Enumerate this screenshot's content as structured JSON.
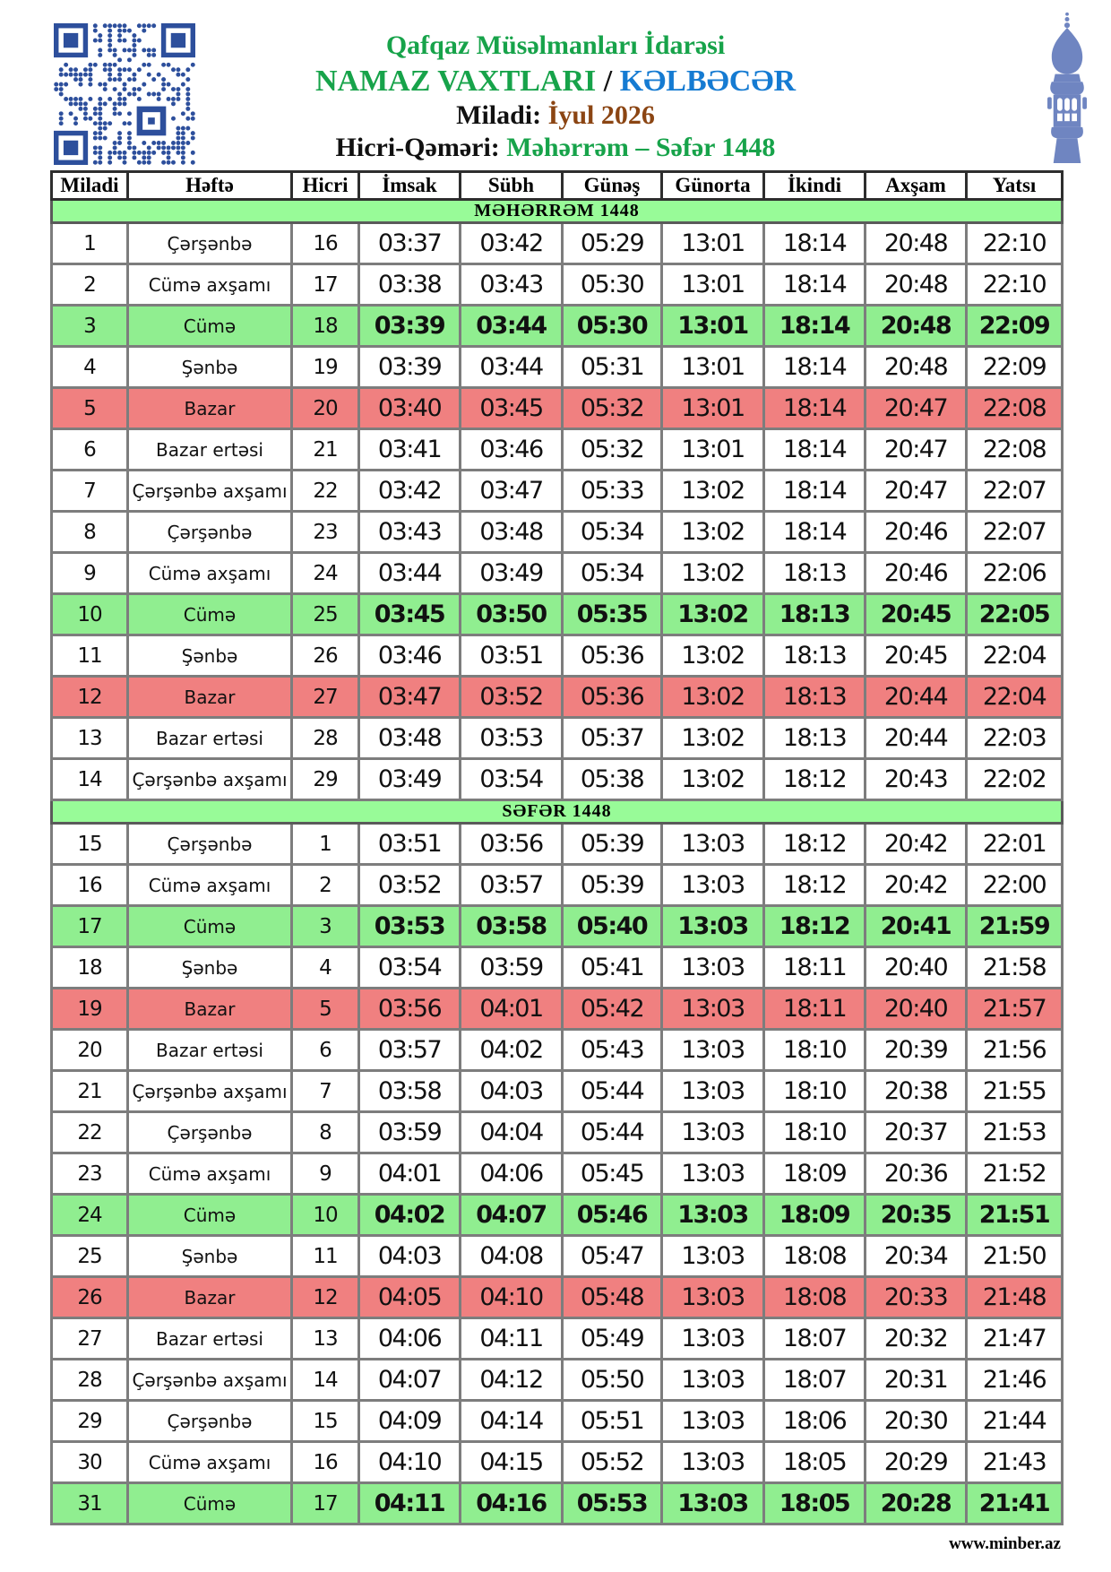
{
  "header": {
    "line1": "Qafqaz Müsəlmanları İdarəsi",
    "line2_left": "NAMAZ VAXTLARI",
    "line2_sep": " / ",
    "line2_right": "KƏLBƏCƏR",
    "line3_label": "Miladi: ",
    "line3_value": "İyul 2026",
    "line4_label": "Hicri-Qəməri: ",
    "line4_value": "Məhərrəm – Səfər 1448"
  },
  "colors": {
    "title_green": "#17a34a",
    "city_blue": "#157bd2",
    "month_brown": "#8b4513",
    "friday_row_bg": "#90ee90",
    "sunday_row_bg": "#f08080",
    "section_bg": "#98fb98",
    "qr_blue": "#2d4f9c",
    "minaret_blue": "#6f85c1"
  },
  "icons": {
    "qr": "qr-code-icon",
    "minaret": "minaret-icon"
  },
  "table": {
    "columns": [
      "Miladi",
      "Həftə",
      "Hicri",
      "İmsak",
      "Sübh",
      "Günəş",
      "Günorta",
      "İkindi",
      "Axşam",
      "Yatsı"
    ],
    "sections": [
      {
        "title": "MƏHƏRRƏM 1448",
        "rows": [
          {
            "miladi": "1",
            "hefte": "Çərşənbə",
            "hicri": "16",
            "times": [
              "03:37",
              "03:42",
              "05:29",
              "13:01",
              "18:14",
              "20:48",
              "22:10"
            ],
            "highlight": "none"
          },
          {
            "miladi": "2",
            "hefte": "Cümə axşamı",
            "hicri": "17",
            "times": [
              "03:38",
              "03:43",
              "05:30",
              "13:01",
              "18:14",
              "20:48",
              "22:10"
            ],
            "highlight": "none"
          },
          {
            "miladi": "3",
            "hefte": "Cümə",
            "hicri": "18",
            "times": [
              "03:39",
              "03:44",
              "05:30",
              "13:01",
              "18:14",
              "20:48",
              "22:09"
            ],
            "highlight": "friday"
          },
          {
            "miladi": "4",
            "hefte": "Şənbə",
            "hicri": "19",
            "times": [
              "03:39",
              "03:44",
              "05:31",
              "13:01",
              "18:14",
              "20:48",
              "22:09"
            ],
            "highlight": "none"
          },
          {
            "miladi": "5",
            "hefte": "Bazar",
            "hicri": "20",
            "times": [
              "03:40",
              "03:45",
              "05:32",
              "13:01",
              "18:14",
              "20:47",
              "22:08"
            ],
            "highlight": "sunday"
          },
          {
            "miladi": "6",
            "hefte": "Bazar ertəsi",
            "hicri": "21",
            "times": [
              "03:41",
              "03:46",
              "05:32",
              "13:01",
              "18:14",
              "20:47",
              "22:08"
            ],
            "highlight": "none"
          },
          {
            "miladi": "7",
            "hefte": "Çərşənbə axşamı",
            "hicri": "22",
            "times": [
              "03:42",
              "03:47",
              "05:33",
              "13:02",
              "18:14",
              "20:47",
              "22:07"
            ],
            "highlight": "none"
          },
          {
            "miladi": "8",
            "hefte": "Çərşənbə",
            "hicri": "23",
            "times": [
              "03:43",
              "03:48",
              "05:34",
              "13:02",
              "18:14",
              "20:46",
              "22:07"
            ],
            "highlight": "none"
          },
          {
            "miladi": "9",
            "hefte": "Cümə axşamı",
            "hicri": "24",
            "times": [
              "03:44",
              "03:49",
              "05:34",
              "13:02",
              "18:13",
              "20:46",
              "22:06"
            ],
            "highlight": "none"
          },
          {
            "miladi": "10",
            "hefte": "Cümə",
            "hicri": "25",
            "times": [
              "03:45",
              "03:50",
              "05:35",
              "13:02",
              "18:13",
              "20:45",
              "22:05"
            ],
            "highlight": "friday"
          },
          {
            "miladi": "11",
            "hefte": "Şənbə",
            "hicri": "26",
            "times": [
              "03:46",
              "03:51",
              "05:36",
              "13:02",
              "18:13",
              "20:45",
              "22:04"
            ],
            "highlight": "none"
          },
          {
            "miladi": "12",
            "hefte": "Bazar",
            "hicri": "27",
            "times": [
              "03:47",
              "03:52",
              "05:36",
              "13:02",
              "18:13",
              "20:44",
              "22:04"
            ],
            "highlight": "sunday"
          },
          {
            "miladi": "13",
            "hefte": "Bazar ertəsi",
            "hicri": "28",
            "times": [
              "03:48",
              "03:53",
              "05:37",
              "13:02",
              "18:13",
              "20:44",
              "22:03"
            ],
            "highlight": "none"
          },
          {
            "miladi": "14",
            "hefte": "Çərşənbə axşamı",
            "hicri": "29",
            "times": [
              "03:49",
              "03:54",
              "05:38",
              "13:02",
              "18:12",
              "20:43",
              "22:02"
            ],
            "highlight": "none"
          }
        ]
      },
      {
        "title": "SƏFƏR 1448",
        "rows": [
          {
            "miladi": "15",
            "hefte": "Çərşənbə",
            "hicri": "1",
            "times": [
              "03:51",
              "03:56",
              "05:39",
              "13:03",
              "18:12",
              "20:42",
              "22:01"
            ],
            "highlight": "none"
          },
          {
            "miladi": "16",
            "hefte": "Cümə axşamı",
            "hicri": "2",
            "times": [
              "03:52",
              "03:57",
              "05:39",
              "13:03",
              "18:12",
              "20:42",
              "22:00"
            ],
            "highlight": "none"
          },
          {
            "miladi": "17",
            "hefte": "Cümə",
            "hicri": "3",
            "times": [
              "03:53",
              "03:58",
              "05:40",
              "13:03",
              "18:12",
              "20:41",
              "21:59"
            ],
            "highlight": "friday"
          },
          {
            "miladi": "18",
            "hefte": "Şənbə",
            "hicri": "4",
            "times": [
              "03:54",
              "03:59",
              "05:41",
              "13:03",
              "18:11",
              "20:40",
              "21:58"
            ],
            "highlight": "none"
          },
          {
            "miladi": "19",
            "hefte": "Bazar",
            "hicri": "5",
            "times": [
              "03:56",
              "04:01",
              "05:42",
              "13:03",
              "18:11",
              "20:40",
              "21:57"
            ],
            "highlight": "sunday"
          },
          {
            "miladi": "20",
            "hefte": "Bazar ertəsi",
            "hicri": "6",
            "times": [
              "03:57",
              "04:02",
              "05:43",
              "13:03",
              "18:10",
              "20:39",
              "21:56"
            ],
            "highlight": "none"
          },
          {
            "miladi": "21",
            "hefte": "Çərşənbə axşamı",
            "hicri": "7",
            "times": [
              "03:58",
              "04:03",
              "05:44",
              "13:03",
              "18:10",
              "20:38",
              "21:55"
            ],
            "highlight": "none"
          },
          {
            "miladi": "22",
            "hefte": "Çərşənbə",
            "hicri": "8",
            "times": [
              "03:59",
              "04:04",
              "05:44",
              "13:03",
              "18:10",
              "20:37",
              "21:53"
            ],
            "highlight": "none"
          },
          {
            "miladi": "23",
            "hefte": "Cümə axşamı",
            "hicri": "9",
            "times": [
              "04:01",
              "04:06",
              "05:45",
              "13:03",
              "18:09",
              "20:36",
              "21:52"
            ],
            "highlight": "none"
          },
          {
            "miladi": "24",
            "hefte": "Cümə",
            "hicri": "10",
            "times": [
              "04:02",
              "04:07",
              "05:46",
              "13:03",
              "18:09",
              "20:35",
              "21:51"
            ],
            "highlight": "friday"
          },
          {
            "miladi": "25",
            "hefte": "Şənbə",
            "hicri": "11",
            "times": [
              "04:03",
              "04:08",
              "05:47",
              "13:03",
              "18:08",
              "20:34",
              "21:50"
            ],
            "highlight": "none"
          },
          {
            "miladi": "26",
            "hefte": "Bazar",
            "hicri": "12",
            "times": [
              "04:05",
              "04:10",
              "05:48",
              "13:03",
              "18:08",
              "20:33",
              "21:48"
            ],
            "highlight": "sunday"
          },
          {
            "miladi": "27",
            "hefte": "Bazar ertəsi",
            "hicri": "13",
            "times": [
              "04:06",
              "04:11",
              "05:49",
              "13:03",
              "18:07",
              "20:32",
              "21:47"
            ],
            "highlight": "none"
          },
          {
            "miladi": "28",
            "hefte": "Çərşənbə axşamı",
            "hicri": "14",
            "times": [
              "04:07",
              "04:12",
              "05:50",
              "13:03",
              "18:07",
              "20:31",
              "21:46"
            ],
            "highlight": "none"
          },
          {
            "miladi": "29",
            "hefte": "Çərşənbə",
            "hicri": "15",
            "times": [
              "04:09",
              "04:14",
              "05:51",
              "13:03",
              "18:06",
              "20:30",
              "21:44"
            ],
            "highlight": "none"
          },
          {
            "miladi": "30",
            "hefte": "Cümə axşamı",
            "hicri": "16",
            "times": [
              "04:10",
              "04:15",
              "05:52",
              "13:03",
              "18:05",
              "20:29",
              "21:43"
            ],
            "highlight": "none"
          },
          {
            "miladi": "31",
            "hefte": "Cümə",
            "hicri": "17",
            "times": [
              "04:11",
              "04:16",
              "05:53",
              "13:03",
              "18:05",
              "20:28",
              "21:41"
            ],
            "highlight": "friday"
          }
        ]
      }
    ]
  },
  "footer": {
    "site": "www.minber.az"
  }
}
